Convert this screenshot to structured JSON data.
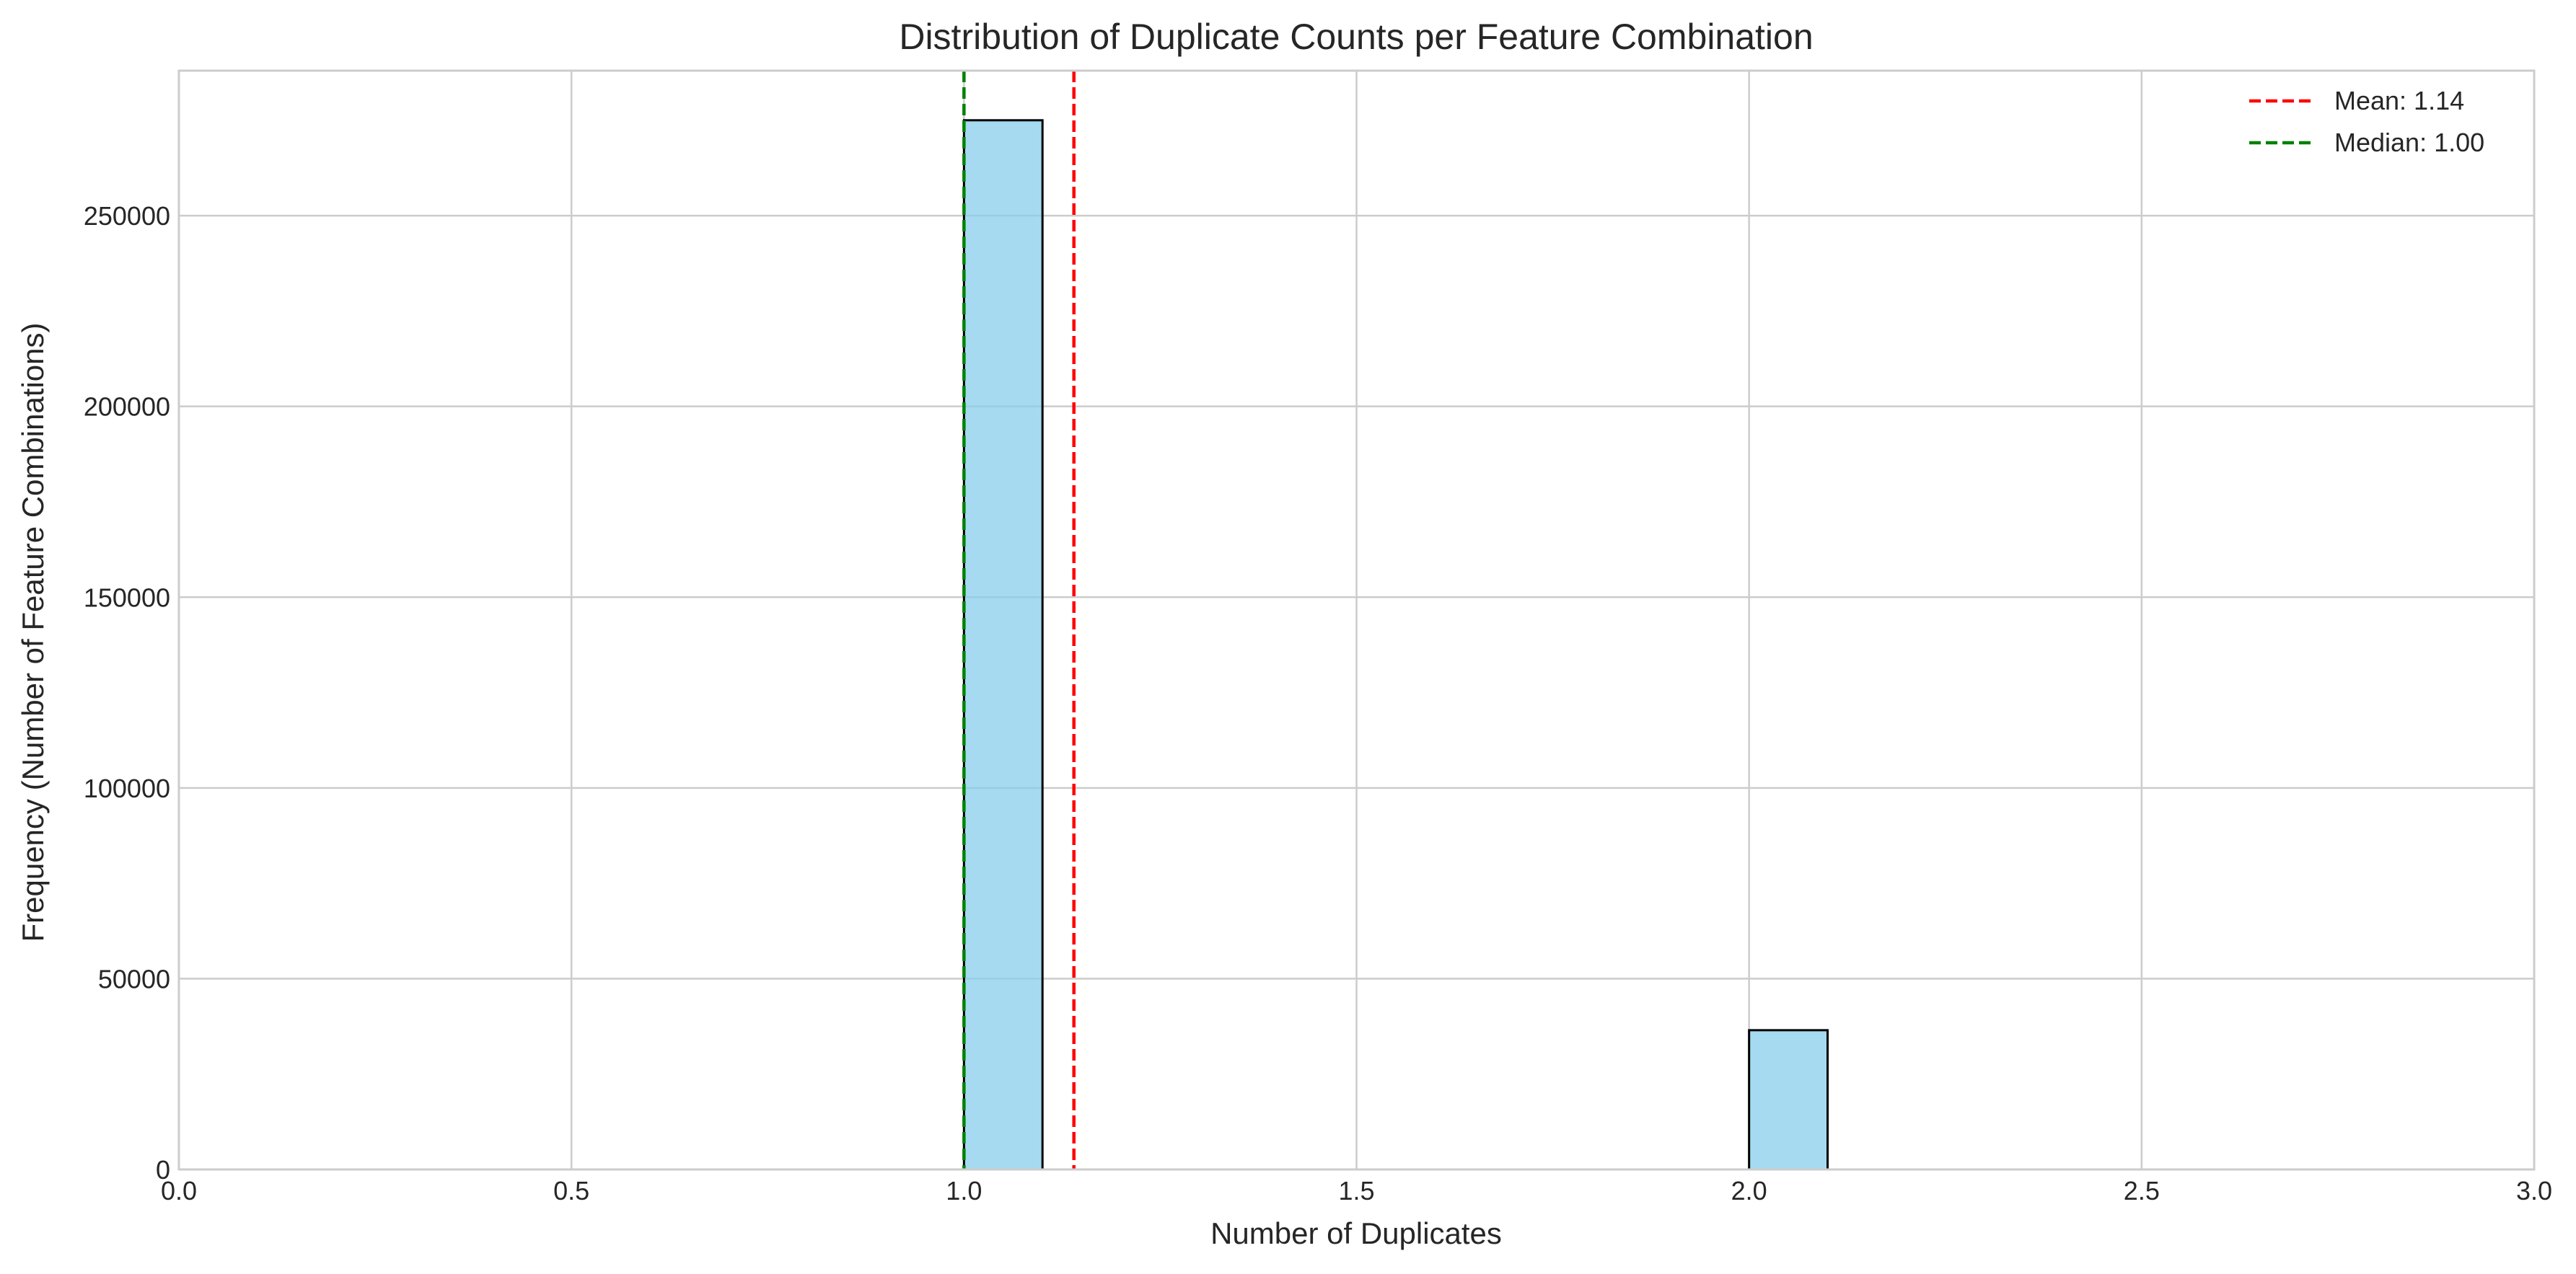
{
  "chart_data": {
    "type": "bar",
    "title": "Distribution of Duplicate Counts per Feature Combination",
    "xlabel": "Number of Duplicates",
    "ylabel": "Frequency (Number of Feature Combinations)",
    "xlim": [
      0.0,
      3.0
    ],
    "ylim": [
      0,
      288000
    ],
    "x_ticks": [
      "0.0",
      "0.5",
      "1.0",
      "1.5",
      "2.0",
      "2.5",
      "3.0"
    ],
    "y_ticks": [
      "0",
      "50000",
      "100000",
      "150000",
      "200000",
      "250000"
    ],
    "bins": [
      {
        "x_start": 1.0,
        "x_end": 1.1,
        "value": 275000
      },
      {
        "x_start": 2.0,
        "x_end": 2.1,
        "value": 36500
      }
    ],
    "reference_lines": [
      {
        "label": "Mean: 1.14",
        "x": 1.14,
        "color": "#ff0000",
        "style": "dashed"
      },
      {
        "label": "Median: 1.00",
        "x": 1.0,
        "color": "#008000",
        "style": "dashed"
      }
    ],
    "bar_color": "#87ceeb",
    "bar_edge_color": "#000000",
    "grid": true,
    "legend_position": "top-right"
  }
}
